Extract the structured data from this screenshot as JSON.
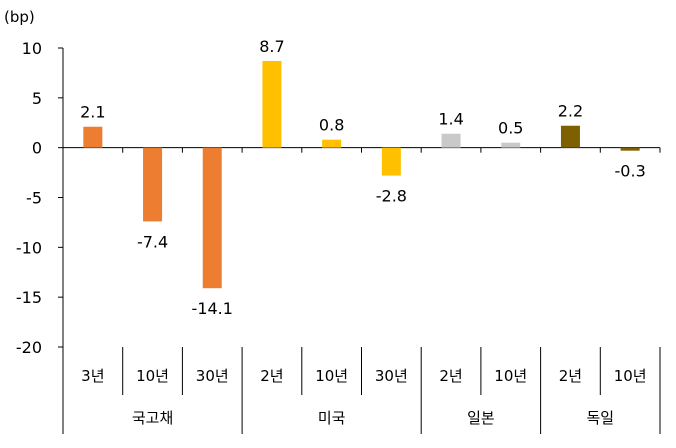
{
  "chart_data": {
    "type": "bar",
    "unit_label": "(bp)",
    "title": "",
    "xlabel": "",
    "ylabel": "",
    "ylim": [
      -20,
      10
    ],
    "yticks": [
      "10",
      "5",
      "0",
      "-5",
      "-10",
      "-15",
      "-20"
    ],
    "ytick_values": [
      10,
      5,
      0,
      -5,
      -10,
      -15,
      -20
    ],
    "grid": false,
    "legend": "none",
    "groups": [
      {
        "name": "국고채",
        "categories": [
          "3년",
          "10년",
          "30년"
        ],
        "values": [
          2.1,
          -7.4,
          -14.1
        ],
        "labels": [
          "2.1",
          "-7.4",
          "-14.1"
        ],
        "color": "#ED7D31"
      },
      {
        "name": "미국",
        "categories": [
          "2년",
          "10년",
          "30년"
        ],
        "values": [
          8.7,
          0.8,
          -2.8
        ],
        "labels": [
          "8.7",
          "0.8",
          "-2.8"
        ],
        "color": "#FFC000"
      },
      {
        "name": "일본",
        "categories": [
          "2년",
          "10년"
        ],
        "values": [
          1.4,
          0.5
        ],
        "labels": [
          "1.4",
          "0.5"
        ],
        "color": "#C9C9C9"
      },
      {
        "name": "독일",
        "categories": [
          "2년",
          "10년"
        ],
        "values": [
          2.2,
          -0.3
        ],
        "labels": [
          "2.2",
          "-0.3"
        ],
        "color": "#7F6000"
      }
    ]
  }
}
